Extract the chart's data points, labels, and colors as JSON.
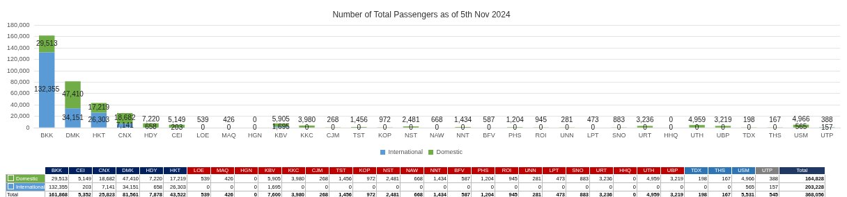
{
  "chart_data": [
    {
      "type": "bar",
      "title": "Number of Total Passengers as of 5th Nov 2024",
      "stacked": true,
      "legend": "bottom",
      "grid": "y",
      "categories": [
        "BKK",
        "DMK",
        "HKT",
        "CNX",
        "HDY",
        "CEI",
        "LOE",
        "MAQ",
        "HGN",
        "KBV",
        "KKC",
        "CJM",
        "TST",
        "KOP",
        "NST",
        "NAW",
        "NNT",
        "BFV",
        "PHS",
        "ROI",
        "UNN",
        "LPT",
        "SNO",
        "URT",
        "HHQ",
        "UTH",
        "UBP",
        "TDX",
        "THS",
        "USM",
        "UTP"
      ],
      "ylim": [
        0,
        180000
      ],
      "yticks": [
        0,
        {
          "value": 20000,
          "label": "20,000"
        },
        {
          "value": 40000,
          "label": "40,000"
        },
        {
          "value": 60000,
          "label": "60,000"
        },
        {
          "value": 80000,
          "label": "80,000"
        },
        {
          "value": 100000,
          "label": "100,000"
        },
        {
          "value": 120000,
          "label": "120,000"
        },
        {
          "value": 140000,
          "label": "140,000"
        },
        {
          "value": 160000,
          "label": "160,000"
        },
        {
          "value": 180000,
          "label": "180,000"
        }
      ],
      "series": [
        {
          "name": "International",
          "color": "#5b9bd5",
          "values": [
            132355,
            34151,
            26303,
            7141,
            658,
            203,
            0,
            0,
            0,
            1695,
            0,
            0,
            0,
            0,
            0,
            0,
            0,
            0,
            0,
            0,
            0,
            0,
            0,
            0,
            0,
            0,
            0,
            0,
            0,
            565,
            157
          ],
          "value_labels": [
            "132,355",
            "34,151",
            "26,303",
            "7,141",
            "658",
            "203",
            "0",
            "0",
            "0",
            "1,695",
            "0",
            "0",
            "0",
            "0",
            "0",
            "0",
            "0",
            "0",
            "0",
            "0",
            "0",
            "0",
            "0",
            "0",
            "0",
            "0",
            "0",
            "0",
            "0",
            "565",
            "157"
          ]
        },
        {
          "name": "Domestic",
          "color": "#70ad47",
          "values": [
            29513,
            47410,
            17219,
            18682,
            7220,
            5149,
            539,
            426,
            0,
            5905,
            3980,
            268,
            1456,
            972,
            2481,
            668,
            1434,
            587,
            1204,
            945,
            281,
            473,
            883,
            3236,
            0,
            4959,
            3219,
            198,
            167,
            4966,
            388
          ],
          "value_labels": [
            "29,513",
            "47,410",
            "17,219",
            "18,682",
            "7,220",
            "5,149",
            "539",
            "426",
            "0",
            "5,905",
            "3,980",
            "268",
            "1,456",
            "972",
            "2,481",
            "668",
            "1,434",
            "587",
            "1,204",
            "945",
            "281",
            "473",
            "883",
            "3,236",
            "0",
            "4,959",
            "3,219",
            "198",
            "167",
            "4,966",
            "388"
          ]
        }
      ]
    },
    {
      "type": "other",
      "categories": [
        "BKK",
        "CEI",
        "CNX",
        "DMK",
        "HDY",
        "HKT",
        "LOE",
        "MAQ",
        "HGN",
        "KBV",
        "KKC",
        "CJM",
        "TST",
        "KOP",
        "NST",
        "NAW",
        "NNT",
        "BFV",
        "PHS",
        "ROI",
        "UNN",
        "LPT",
        "SNO",
        "URT",
        "HHQ",
        "UTH",
        "UBP",
        "TDX",
        "THS",
        "USM",
        "UTP",
        "Total"
      ],
      "colors": [
        "#002060",
        "#002060",
        "#002060",
        "#002060",
        "#002060",
        "#002060",
        "#c00000",
        "#c00000",
        "#c00000",
        "#c00000",
        "#c00000",
        "#c00000",
        "#c00000",
        "#c00000",
        "#c00000",
        "#c00000",
        "#c00000",
        "#c00000",
        "#c00000",
        "#c00000",
        "#c00000",
        "#c00000",
        "#c00000",
        "#c00000",
        "#c00000",
        "#c00000",
        "#c00000",
        "#2e75b6",
        "#2e75b6",
        "#2e75b6",
        "#808080",
        "#1f3864"
      ],
      "series": [
        {
          "name": "Domestic",
          "color": "#70ad47",
          "values": [
            29513,
            5149,
            18682,
            47410,
            7220,
            17219,
            539,
            426,
            0,
            5905,
            3980,
            268,
            1456,
            972,
            2481,
            668,
            1434,
            587,
            1204,
            945,
            281,
            473,
            883,
            3236,
            0,
            4959,
            3219,
            198,
            167,
            4966,
            388,
            164828
          ],
          "value_labels": [
            "29,513",
            "5,149",
            "18,682",
            "47,410",
            "7,220",
            "17,219",
            "539",
            "426",
            "0",
            "5,905",
            "3,980",
            "268",
            "1,456",
            "972",
            "2,481",
            "668",
            "1,434",
            "587",
            "1,204",
            "945",
            "281",
            "473",
            "883",
            "3,236",
            "0",
            "4,959",
            "3,219",
            "198",
            "167",
            "4,966",
            "388",
            "164,828"
          ]
        },
        {
          "name": "International",
          "color": "#5b9bd5",
          "values": [
            132355,
            203,
            7141,
            34151,
            658,
            26303,
            0,
            0,
            0,
            1695,
            0,
            0,
            0,
            0,
            0,
            0,
            0,
            0,
            0,
            0,
            0,
            0,
            0,
            0,
            0,
            0,
            0,
            0,
            0,
            565,
            157,
            203228
          ],
          "value_labels": [
            "132,355",
            "203",
            "7,141",
            "34,151",
            "658",
            "26,303",
            "0",
            "0",
            "0",
            "1,695",
            "0",
            "0",
            "0",
            "0",
            "0",
            "0",
            "0",
            "0",
            "0",
            "0",
            "0",
            "0",
            "0",
            "0",
            "0",
            "0",
            "0",
            "0",
            "0",
            "565",
            "157",
            "203,228"
          ]
        }
      ],
      "annotations": [
        "Total"
      ],
      "totals": [
        "161,868",
        "5,352",
        "25,823",
        "81,561",
        "7,878",
        "43,522",
        "539",
        "426",
        "0",
        "7,600",
        "3,980",
        "268",
        "1,456",
        "972",
        "2,481",
        "668",
        "1,434",
        "587",
        "1,204",
        "945",
        "281",
        "473",
        "883",
        "3,236",
        "0",
        "4,959",
        "3,219",
        "198",
        "167",
        "5,531",
        "545",
        "368,056"
      ]
    }
  ]
}
